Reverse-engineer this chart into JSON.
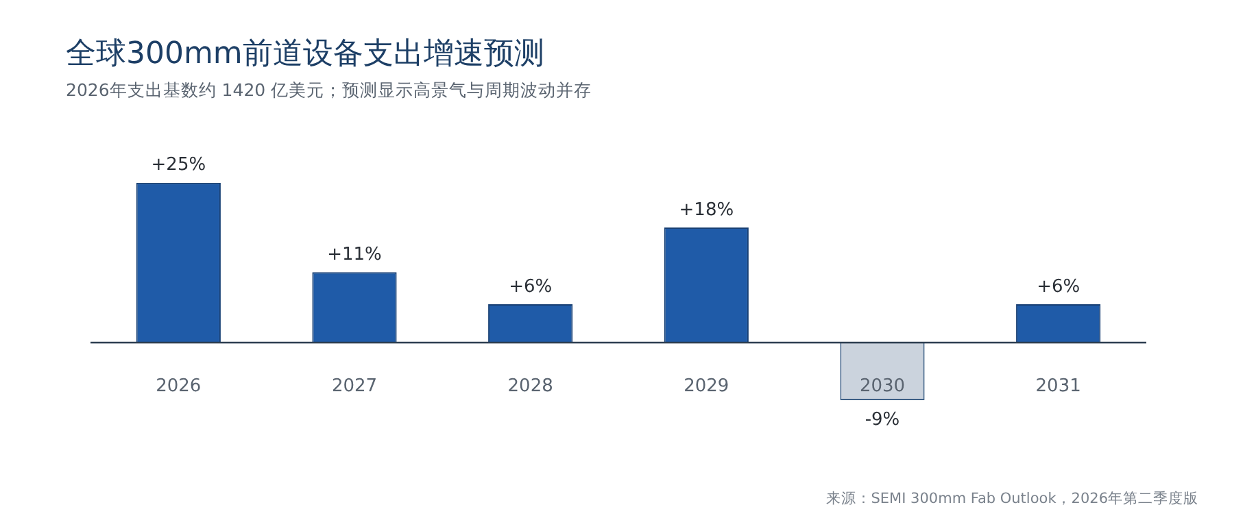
{
  "chart_data": {
    "type": "bar",
    "title": "全球300mm前道设备支出增速预测",
    "subtitle": "2026年支出基数约 1420 亿美元；预测显示高景气与周期波动并存",
    "categories": [
      "2026",
      "2027",
      "2028",
      "2029",
      "2030",
      "2031"
    ],
    "values": [
      25,
      11,
      6,
      18,
      -9,
      6
    ],
    "colors": [
      "#1f5ba8",
      "#1f5ba8",
      "#1f5ba8",
      "#1f5ba8",
      "#cbd3dd",
      "#1f5ba8"
    ],
    "value_labels": [
      "+25%",
      "+11%",
      "+6%",
      "+18%",
      "-9%",
      "+6%"
    ],
    "annotations": [
      "来源：SEMI 300mm Fab Outlook，2026年第二季度版"
    ]
  }
}
